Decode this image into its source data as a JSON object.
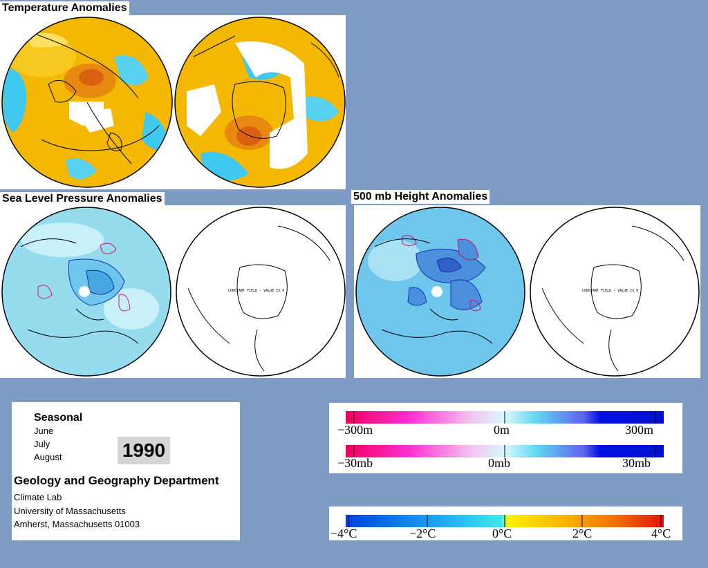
{
  "sections": {
    "temperature": {
      "title": "Temperature Anomalies"
    },
    "slp": {
      "title": "Sea Level Pressure Anomalies",
      "const_note": "CONSTANT FIELD - VALUE IS 0"
    },
    "h500": {
      "title": "500 mb Height Anomalies",
      "const_note": "CONSTANT FIELD - VALUE IS 0"
    }
  },
  "info": {
    "season": "Seasonal",
    "months": [
      "June",
      "July",
      "August"
    ],
    "year": "1990",
    "department": "Geology and Geography Department",
    "address": [
      "Climate Lab",
      "University of Massachusetts",
      "Amherst, Massachusetts 01003"
    ]
  },
  "legends": {
    "height": {
      "labels": [
        "−300m",
        "0m",
        "300m"
      ]
    },
    "pressure": {
      "labels": [
        "−30mb",
        "0mb",
        "30mb"
      ]
    },
    "temperature": {
      "labels": [
        "−4°C",
        "−2°C",
        "0°C",
        "2°C",
        "4°C"
      ]
    }
  },
  "colors": {
    "background": "#7f9cc4",
    "temp_warm": "#f5b800",
    "temp_hot": "#e06010",
    "temp_cool": "#40c8f0",
    "slp_fill": "#96dcef",
    "h500_fill": "#6ec6ec",
    "neg_contour": "#d01060",
    "pos_contour": "#1030b0"
  }
}
